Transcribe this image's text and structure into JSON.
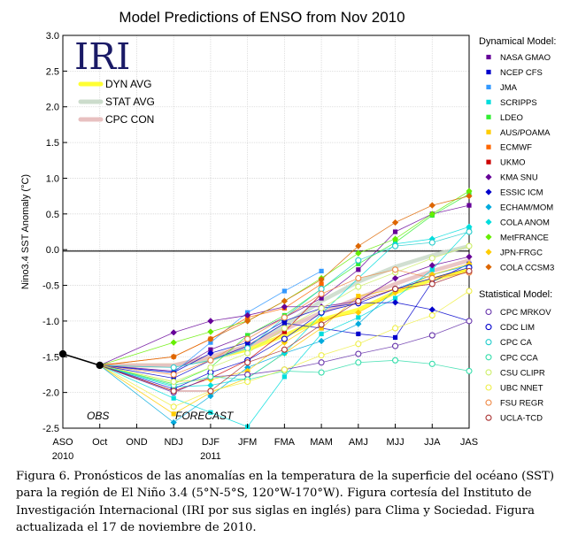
{
  "chart_data": {
    "type": "line",
    "title": "Model Predictions of ENSO from Nov 2010",
    "ylabel": "Nino3.4 SST Anomaly (°C)",
    "xlabel": "",
    "ylim": [
      -2.5,
      3.0
    ],
    "y_ticks": [
      "3.0",
      "2.5",
      "2.0",
      "1.5",
      "1.0",
      "0.5",
      "0.0",
      "-0.5",
      "-1.0",
      "-1.5",
      "-2.0",
      "-2.5"
    ],
    "categories": [
      "ASO",
      "Oct",
      "OND",
      "NDJ",
      "DJF",
      "JFM",
      "FMA",
      "MAM",
      "AMJ",
      "MJJ",
      "JJA",
      "JAS"
    ],
    "year_labels": [
      {
        "label": "2010",
        "at": "ASO"
      },
      {
        "label": "2011",
        "at": "DJF"
      }
    ],
    "grid": true,
    "logo": "IRI",
    "obs_label": "OBS",
    "forecast_label": "FORECAST",
    "observed": {
      "x": [
        "ASO",
        "Oct"
      ],
      "values": [
        -1.46,
        -1.62
      ]
    },
    "averages": [
      {
        "name": "DYN AVG",
        "color": "#ffff33",
        "values": [
          null,
          -1.62,
          null,
          -1.62,
          -1.52,
          -1.4,
          -1.2,
          -0.98,
          -0.84,
          -0.6,
          -0.42,
          -0.28
        ]
      },
      {
        "name": "STAT AVG",
        "color": "#ccdccc",
        "values": [
          null,
          -1.62,
          null,
          -1.62,
          -1.54,
          -1.36,
          -1.06,
          -0.72,
          -0.45,
          -0.24,
          -0.08,
          0.05
        ]
      },
      {
        "name": "CPC CON",
        "color": "#e8c0c0",
        "values": [
          null,
          -1.62,
          null,
          -1.62,
          -1.5,
          -1.35,
          -1.12,
          -0.88,
          -0.68,
          -0.48,
          -0.3,
          -0.15
        ]
      }
    ],
    "legend_headers": {
      "dynamical": "Dynamical Model:",
      "statistical": "Statistical Model:"
    },
    "series": [
      {
        "name": "NASA GMAO",
        "group": "dynamical",
        "marker": "square",
        "color": "#660099",
        "values": [
          null,
          -1.62,
          null,
          -1.7,
          -1.4,
          -1.2,
          -0.95,
          -0.68,
          -0.28,
          0.25,
          0.5,
          0.62
        ]
      },
      {
        "name": "NCEP CFS",
        "group": "dynamical",
        "marker": "square",
        "color": "#0000cc",
        "values": [
          null,
          -1.62,
          null,
          -1.8,
          -1.55,
          -1.35,
          -1.03,
          -1.1,
          -1.18,
          -1.23,
          -0.45,
          -0.2
        ]
      },
      {
        "name": "JMA",
        "group": "dynamical",
        "marker": "square",
        "color": "#3399ff",
        "values": [
          null,
          -1.62,
          null,
          -1.72,
          -1.3,
          -0.88,
          -0.58,
          -0.3,
          null,
          null,
          null,
          null
        ]
      },
      {
        "name": "SCRIPPS",
        "group": "dynamical",
        "marker": "square",
        "color": "#00dddd",
        "values": [
          null,
          -1.62,
          null,
          -2.08,
          -2.28,
          -2.48,
          -1.78,
          -1.18,
          -0.95,
          -0.68,
          -0.28,
          0.28
        ]
      },
      {
        "name": "LDEO",
        "group": "dynamical",
        "marker": "square",
        "color": "#33ee33",
        "values": [
          null,
          -1.62,
          null,
          -1.88,
          -1.65,
          -1.2,
          -0.92,
          -0.55,
          -0.2,
          0.1,
          0.48,
          0.78
        ]
      },
      {
        "name": "AUS/POAMA",
        "group": "dynamical",
        "marker": "square",
        "color": "#ffcc00",
        "values": [
          null,
          -1.62,
          null,
          -2.3,
          -2.0,
          -1.8,
          -1.45,
          -1.1,
          -0.65,
          -0.55,
          -0.4,
          -0.28
        ]
      },
      {
        "name": "ECMWF",
        "group": "dynamical",
        "marker": "square",
        "color": "#ff6600",
        "values": [
          null,
          -1.62,
          null,
          -1.5,
          -1.25,
          -0.95,
          -0.82,
          -0.48,
          null,
          null,
          null,
          null
        ]
      },
      {
        "name": "UKMO",
        "group": "dynamical",
        "marker": "square",
        "color": "#cc0000",
        "values": [
          null,
          -1.62,
          null,
          -1.98,
          -1.8,
          -1.55,
          -1.15,
          -0.62,
          null,
          null,
          null,
          null
        ]
      },
      {
        "name": "KMA SNU",
        "group": "dynamical",
        "marker": "diamond",
        "color": "#660099",
        "values": [
          null,
          -1.62,
          null,
          -1.16,
          -1.0,
          -0.92,
          -0.8,
          -0.8,
          -0.72,
          -0.4,
          -0.22,
          -0.1
        ]
      },
      {
        "name": "ESSIC ICM",
        "group": "dynamical",
        "marker": "diamond",
        "color": "#0000cc",
        "values": [
          null,
          -1.62,
          null,
          -1.72,
          -1.45,
          -1.3,
          -1.0,
          -0.82,
          -0.75,
          -0.74,
          -0.84,
          -1.0
        ]
      },
      {
        "name": "ECHAM/MOM",
        "group": "dynamical",
        "marker": "diamond",
        "color": "#00aadd",
        "values": [
          null,
          -1.62,
          null,
          -2.42,
          -2.05,
          -1.65,
          -1.45,
          -1.28,
          -1.04,
          -0.56,
          -0.35,
          -0.22
        ]
      },
      {
        "name": "COLA ANOM",
        "group": "dynamical",
        "marker": "diamond",
        "color": "#00dddd",
        "values": [
          null,
          -1.62,
          null,
          -1.92,
          -1.9,
          -1.8,
          -1.45,
          -0.9,
          -0.4,
          0.08,
          0.15,
          0.32
        ]
      },
      {
        "name": "MetFRANCE",
        "group": "dynamical",
        "marker": "diamond",
        "color": "#66ee00",
        "values": [
          null,
          -1.62,
          null,
          -1.3,
          -1.15,
          -1.0,
          -0.72,
          -0.4,
          -0.05,
          0.15,
          0.5,
          0.82
        ]
      },
      {
        "name": "JPN-FRGC",
        "group": "dynamical",
        "marker": "diamond",
        "color": "#ffcc00",
        "values": [
          null,
          -1.62,
          null,
          -1.85,
          -1.82,
          -1.7,
          -1.3,
          -0.98,
          -0.88,
          -0.6,
          -0.35,
          -0.2
        ]
      },
      {
        "name": "COLA CCSM3",
        "group": "dynamical",
        "marker": "diamond",
        "color": "#dd6600",
        "values": [
          null,
          -1.62,
          null,
          -1.5,
          -1.25,
          -1.0,
          -0.72,
          -0.42,
          0.05,
          0.38,
          0.62,
          0.75
        ]
      },
      {
        "name": "CPC MRKOV",
        "group": "statistical",
        "marker": "circle",
        "color": "#6633aa",
        "values": [
          null,
          -1.62,
          null,
          -2.0,
          -1.78,
          -1.75,
          -1.68,
          -1.58,
          -1.46,
          -1.35,
          -1.2,
          -1.0
        ]
      },
      {
        "name": "CDC LIM",
        "group": "statistical",
        "marker": "circle",
        "color": "#0000cc",
        "values": [
          null,
          -1.62,
          null,
          -1.95,
          -1.72,
          -1.55,
          -1.25,
          -0.88,
          -0.75,
          -0.55,
          -0.4,
          -0.25
        ]
      },
      {
        "name": "CPC CA",
        "group": "statistical",
        "marker": "circle",
        "color": "#22cccc",
        "values": [
          null,
          -1.62,
          null,
          -1.65,
          -1.55,
          -1.38,
          -0.95,
          -0.55,
          -0.15,
          0.05,
          0.1,
          0.25
        ]
      },
      {
        "name": "CPC CCA",
        "group": "statistical",
        "marker": "circle",
        "color": "#33ddaa",
        "values": [
          null,
          -1.62,
          null,
          -1.9,
          -1.78,
          -1.82,
          -1.7,
          -1.72,
          -1.58,
          -1.55,
          -1.6,
          -1.7
        ]
      },
      {
        "name": "CSU CLIPR",
        "group": "statistical",
        "marker": "circle",
        "color": "#ccee66",
        "values": [
          null,
          -1.62,
          null,
          -1.85,
          -1.65,
          -1.45,
          -1.1,
          -0.82,
          -0.52,
          -0.32,
          -0.12,
          0.05
        ]
      },
      {
        "name": "UBC NNET",
        "group": "statistical",
        "marker": "circle",
        "color": "#eeee44",
        "values": [
          null,
          -1.62,
          null,
          -2.2,
          -1.98,
          -1.85,
          -1.68,
          -1.48,
          -1.32,
          -1.1,
          -0.92,
          -0.58
        ]
      },
      {
        "name": "FSU REGR",
        "group": "statistical",
        "marker": "circle",
        "color": "#ee8844",
        "values": [
          null,
          -1.62,
          null,
          -1.75,
          -1.55,
          -1.25,
          -0.95,
          -0.62,
          -0.4,
          -0.28,
          -0.4,
          -0.32
        ]
      },
      {
        "name": "UCLA-TCD",
        "group": "statistical",
        "marker": "circle",
        "color": "#aa3333",
        "values": [
          null,
          -1.62,
          null,
          -1.98,
          -1.98,
          -1.58,
          -1.4,
          -1.05,
          -0.72,
          -0.55,
          -0.48,
          -0.3
        ]
      }
    ]
  },
  "caption": "Figura 6. Pronósticos de las anomalías en la temperatura de la superficie del océano (SST) para la región de El Niño 3.4 (5°N-5°S, 120°W-170°W). Figura cortesía del Instituto de Investigación Internacional (IRI por sus siglas en inglés) para Clima y Sociedad. Figura actualizada el 17 de noviembre de 2010."
}
